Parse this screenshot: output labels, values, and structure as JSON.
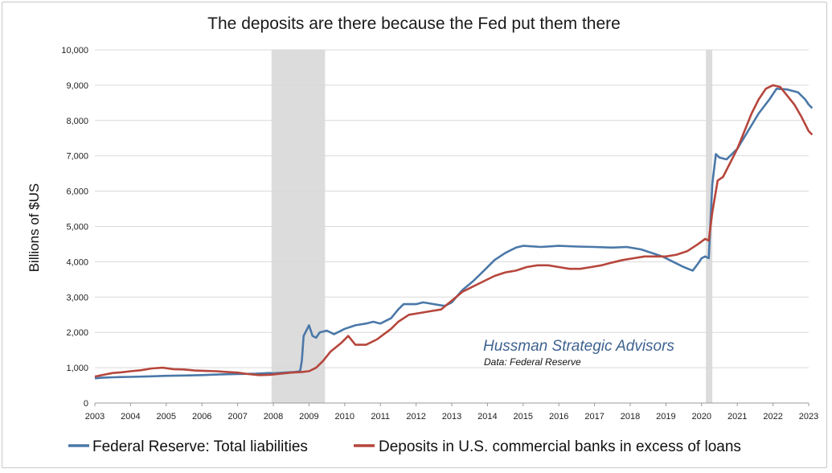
{
  "chart_data": {
    "type": "line",
    "title": "The deposits are there because the Fed put them there",
    "ylabel": "Billions of $US",
    "xlabel": "",
    "ylim": [
      0,
      10000
    ],
    "xlim": [
      2003,
      2023
    ],
    "y_ticks": [
      "0",
      "1,000",
      "2,000",
      "3,000",
      "4,000",
      "5,000",
      "6,000",
      "7,000",
      "8,000",
      "9,000",
      "10,000"
    ],
    "x_ticks": [
      "2003",
      "2004",
      "2005",
      "2006",
      "2007",
      "2008",
      "2009",
      "2010",
      "2011",
      "2012",
      "2013",
      "2014",
      "2015",
      "2016",
      "2017",
      "2018",
      "2019",
      "2020",
      "2021",
      "2022",
      "2023"
    ],
    "grid": "horizontal",
    "legend_position": "bottom",
    "recessions": [
      [
        2007.95,
        2009.45
      ],
      [
        2020.12,
        2020.3
      ]
    ],
    "annotation": {
      "org": "Hussman Strategic Advisors",
      "source": "Data: Federal Reserve"
    },
    "series": [
      {
        "name": "Federal Reserve: Total liabilities",
        "color": "#4a78a8",
        "points": [
          [
            2003.0,
            700
          ],
          [
            2003.25,
            720
          ],
          [
            2003.5,
            730
          ],
          [
            2003.75,
            735
          ],
          [
            2004.0,
            740
          ],
          [
            2004.5,
            755
          ],
          [
            2005.0,
            770
          ],
          [
            2005.5,
            780
          ],
          [
            2006.0,
            790
          ],
          [
            2006.5,
            810
          ],
          [
            2007.0,
            820
          ],
          [
            2007.5,
            830
          ],
          [
            2007.9,
            850
          ],
          [
            2008.0,
            840
          ],
          [
            2008.3,
            860
          ],
          [
            2008.6,
            880
          ],
          [
            2008.75,
            900
          ],
          [
            2008.8,
            1200
          ],
          [
            2008.85,
            1900
          ],
          [
            2009.0,
            2200
          ],
          [
            2009.1,
            1900
          ],
          [
            2009.2,
            1850
          ],
          [
            2009.3,
            2000
          ],
          [
            2009.5,
            2050
          ],
          [
            2009.7,
            1950
          ],
          [
            2010.0,
            2100
          ],
          [
            2010.3,
            2200
          ],
          [
            2010.6,
            2250
          ],
          [
            2010.8,
            2300
          ],
          [
            2011.0,
            2250
          ],
          [
            2011.3,
            2400
          ],
          [
            2011.5,
            2650
          ],
          [
            2011.65,
            2800
          ],
          [
            2012.0,
            2800
          ],
          [
            2012.2,
            2850
          ],
          [
            2012.5,
            2800
          ],
          [
            2012.8,
            2750
          ],
          [
            2013.0,
            2850
          ],
          [
            2013.3,
            3200
          ],
          [
            2013.6,
            3450
          ],
          [
            2013.9,
            3750
          ],
          [
            2014.2,
            4050
          ],
          [
            2014.5,
            4250
          ],
          [
            2014.8,
            4400
          ],
          [
            2015.0,
            4450
          ],
          [
            2015.5,
            4420
          ],
          [
            2016.0,
            4450
          ],
          [
            2016.5,
            4430
          ],
          [
            2017.0,
            4420
          ],
          [
            2017.5,
            4400
          ],
          [
            2017.9,
            4420
          ],
          [
            2018.3,
            4350
          ],
          [
            2018.6,
            4250
          ],
          [
            2018.9,
            4150
          ],
          [
            2019.2,
            4000
          ],
          [
            2019.5,
            3850
          ],
          [
            2019.75,
            3750
          ],
          [
            2019.9,
            3950
          ],
          [
            2020.0,
            4100
          ],
          [
            2020.1,
            4150
          ],
          [
            2020.2,
            4100
          ],
          [
            2020.3,
            6200
          ],
          [
            2020.4,
            7050
          ],
          [
            2020.5,
            6950
          ],
          [
            2020.7,
            6900
          ],
          [
            2021.0,
            7200
          ],
          [
            2021.3,
            7700
          ],
          [
            2021.6,
            8200
          ],
          [
            2021.9,
            8600
          ],
          [
            2022.1,
            8900
          ],
          [
            2022.4,
            8880
          ],
          [
            2022.7,
            8800
          ],
          [
            2022.9,
            8600
          ],
          [
            2023.0,
            8450
          ],
          [
            2023.1,
            8350
          ]
        ]
      },
      {
        "name": "Deposits in U.S. commercial banks in excess of loans",
        "color": "#b6463c",
        "points": [
          [
            2003.0,
            750
          ],
          [
            2003.25,
            800
          ],
          [
            2003.5,
            850
          ],
          [
            2003.75,
            870
          ],
          [
            2004.0,
            900
          ],
          [
            2004.3,
            930
          ],
          [
            2004.6,
            980
          ],
          [
            2004.9,
            1000
          ],
          [
            2005.2,
            960
          ],
          [
            2005.5,
            950
          ],
          [
            2005.8,
            920
          ],
          [
            2006.1,
            910
          ],
          [
            2006.4,
            900
          ],
          [
            2006.7,
            880
          ],
          [
            2007.0,
            860
          ],
          [
            2007.3,
            820
          ],
          [
            2007.6,
            790
          ],
          [
            2007.9,
            800
          ],
          [
            2008.2,
            830
          ],
          [
            2008.5,
            860
          ],
          [
            2008.8,
            880
          ],
          [
            2009.0,
            900
          ],
          [
            2009.2,
            1000
          ],
          [
            2009.4,
            1200
          ],
          [
            2009.6,
            1450
          ],
          [
            2009.9,
            1700
          ],
          [
            2010.1,
            1900
          ],
          [
            2010.3,
            1650
          ],
          [
            2010.6,
            1650
          ],
          [
            2010.9,
            1800
          ],
          [
            2011.1,
            1950
          ],
          [
            2011.3,
            2100
          ],
          [
            2011.5,
            2300
          ],
          [
            2011.8,
            2500
          ],
          [
            2012.1,
            2550
          ],
          [
            2012.4,
            2600
          ],
          [
            2012.7,
            2650
          ],
          [
            2013.0,
            2900
          ],
          [
            2013.3,
            3150
          ],
          [
            2013.6,
            3300
          ],
          [
            2013.9,
            3450
          ],
          [
            2014.2,
            3600
          ],
          [
            2014.5,
            3700
          ],
          [
            2014.8,
            3750
          ],
          [
            2015.1,
            3850
          ],
          [
            2015.4,
            3900
          ],
          [
            2015.7,
            3900
          ],
          [
            2016.0,
            3850
          ],
          [
            2016.3,
            3800
          ],
          [
            2016.6,
            3800
          ],
          [
            2016.9,
            3850
          ],
          [
            2017.2,
            3900
          ],
          [
            2017.5,
            3980
          ],
          [
            2017.8,
            4050
          ],
          [
            2018.1,
            4100
          ],
          [
            2018.4,
            4150
          ],
          [
            2018.7,
            4150
          ],
          [
            2019.0,
            4150
          ],
          [
            2019.3,
            4200
          ],
          [
            2019.6,
            4300
          ],
          [
            2019.9,
            4500
          ],
          [
            2020.1,
            4650
          ],
          [
            2020.2,
            4600
          ],
          [
            2020.3,
            5400
          ],
          [
            2020.45,
            6300
          ],
          [
            2020.6,
            6400
          ],
          [
            2020.8,
            6800
          ],
          [
            2021.0,
            7200
          ],
          [
            2021.2,
            7700
          ],
          [
            2021.4,
            8200
          ],
          [
            2021.6,
            8600
          ],
          [
            2021.8,
            8900
          ],
          [
            2022.0,
            9000
          ],
          [
            2022.2,
            8950
          ],
          [
            2022.4,
            8700
          ],
          [
            2022.6,
            8450
          ],
          [
            2022.8,
            8100
          ],
          [
            2023.0,
            7700
          ],
          [
            2023.1,
            7600
          ]
        ]
      }
    ]
  }
}
